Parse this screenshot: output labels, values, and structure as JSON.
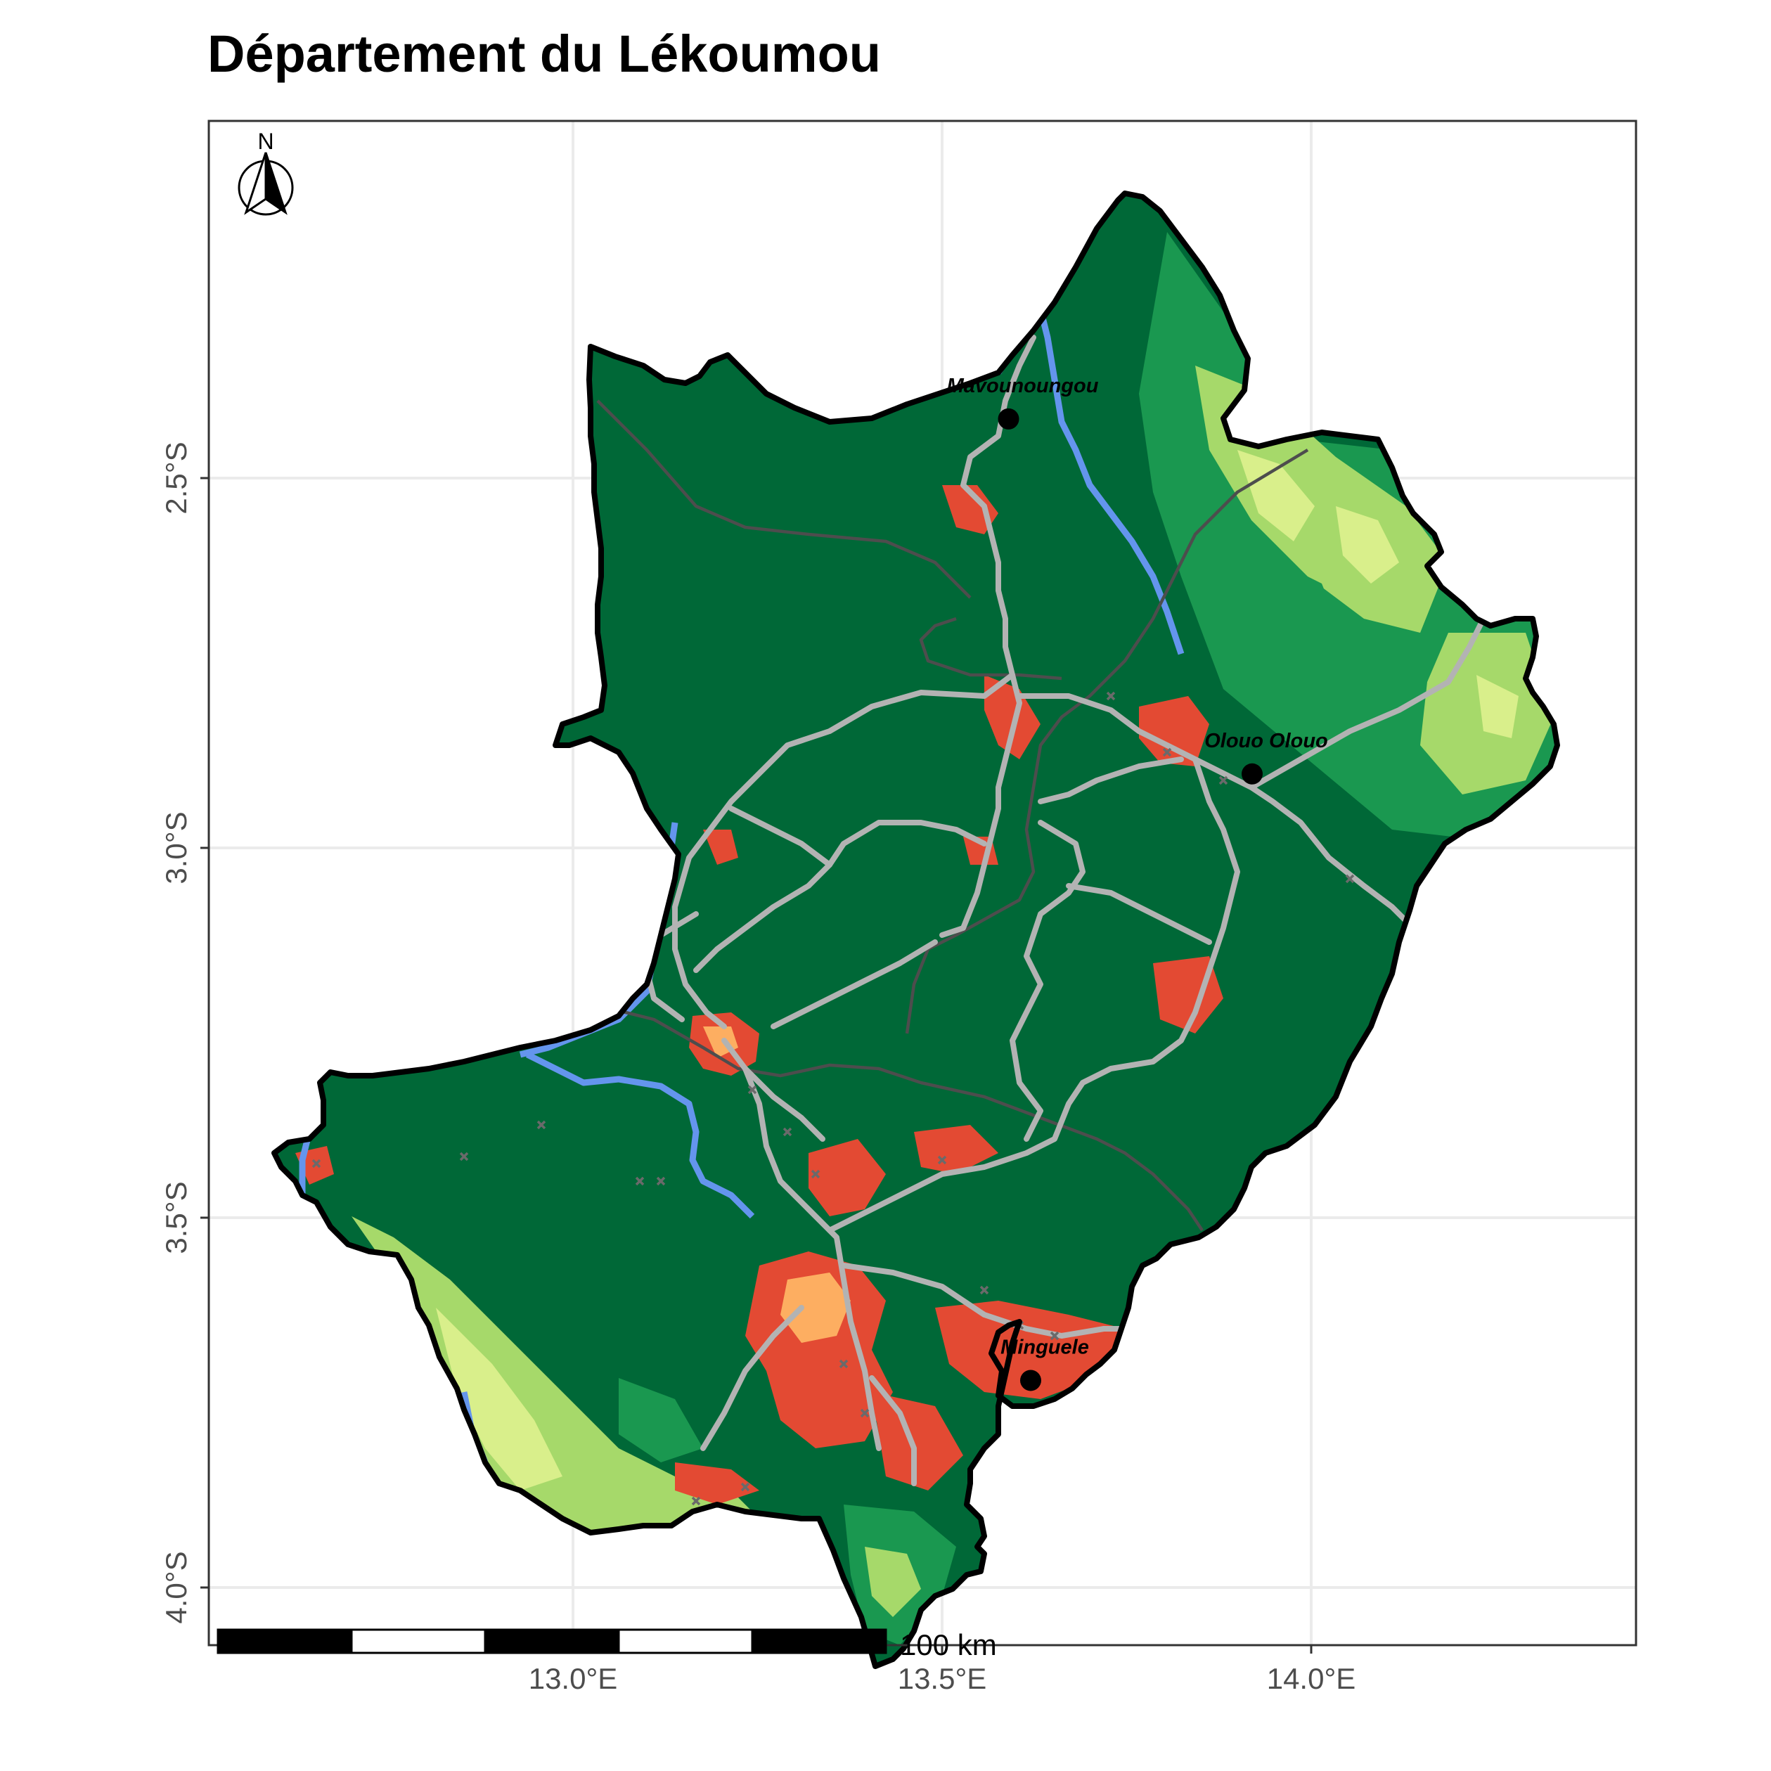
{
  "map": {
    "title": "Département du Lékoumou",
    "x_axis": {
      "ticks": [
        {
          "label": "13.0°E",
          "value": 13.0
        },
        {
          "label": "13.5°E",
          "value": 13.5
        },
        {
          "label": "14.0°E",
          "value": 14.0
        }
      ]
    },
    "y_axis": {
      "ticks": [
        {
          "label": "2.5°S",
          "value": -2.5
        },
        {
          "label": "3.0°S",
          "value": -3.0
        },
        {
          "label": "3.5°S",
          "value": -3.5
        },
        {
          "label": "4.0°S",
          "value": -4.0
        }
      ]
    },
    "places": [
      {
        "name": "Mavounoungou",
        "lon": 13.59,
        "lat": -2.42
      },
      {
        "name": "Olouo Olouo",
        "lon": 13.92,
        "lat": -2.9
      },
      {
        "name": "Minguele",
        "lon": 13.62,
        "lat": -3.72
      }
    ],
    "scale_bar": {
      "label": "100 km",
      "segments": 5
    },
    "north_arrow": {
      "label": "N",
      "icon": "north-arrow-icon"
    },
    "colors": {
      "dense_forest": "#006837",
      "forest": "#1a9850",
      "savanna": "#a6d96a",
      "grassland": "#d9ef8b",
      "cropland": "#fdae61",
      "settlement": "#e34a33",
      "water": "#6495ed",
      "roads": "#b3b3b3",
      "tracks": "#4d4d4d",
      "boundary": "#000000",
      "grid": "#ebebeb"
    },
    "grid": true
  }
}
